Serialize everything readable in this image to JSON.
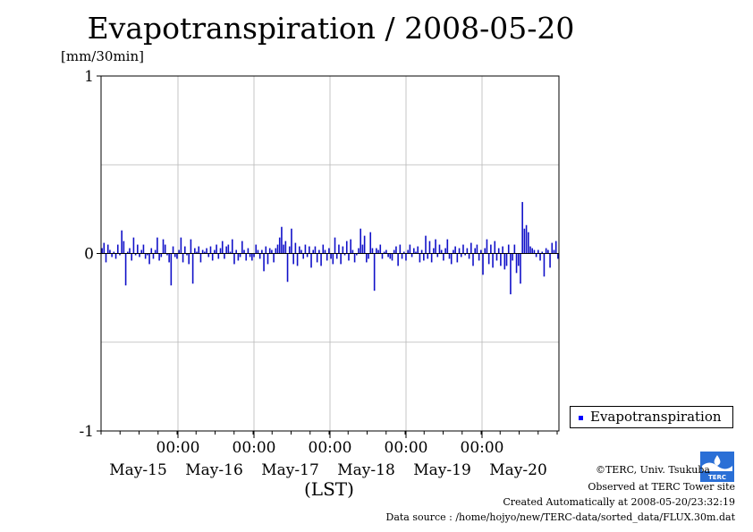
{
  "chart_data": {
    "type": "bar",
    "title": "Evapotranspiration / 2008-05-20",
    "ylabel": "[mm/30min]",
    "xlabel": "(LST)",
    "ylim": [
      -1,
      1
    ],
    "yticks": [
      "1",
      "0",
      "-1"
    ],
    "time_ticks": [
      "00:00",
      "00:00",
      "00:00",
      "00:00",
      "00:00"
    ],
    "date_ticks": [
      "May-15",
      "May-16",
      "May-17",
      "May-18",
      "May-19",
      "May-20"
    ],
    "legend": "top-right",
    "grid": true,
    "series": [
      {
        "name": "Evapotranspiration",
        "color": "#1010c8",
        "values": [
          0.03,
          0.06,
          -0.05,
          0.05,
          0.02,
          -0.02,
          0.01,
          -0.03,
          0.05,
          -0.01,
          0.13,
          0.07,
          -0.18,
          0.01,
          0.03,
          -0.04,
          0.09,
          -0.01,
          0.05,
          -0.02,
          0.02,
          0.05,
          -0.03,
          -0.01,
          -0.06,
          0.03,
          -0.03,
          0.02,
          0.09,
          -0.04,
          -0.02,
          0.08,
          0.05,
          -0.01,
          -0.05,
          -0.18,
          0.04,
          -0.02,
          -0.03,
          0.02,
          0.09,
          -0.05,
          0.04,
          -0.01,
          -0.06,
          0.08,
          -0.17,
          0.03,
          0.01,
          0.04,
          -0.05,
          0.02,
          0.01,
          0.03,
          -0.02,
          0.04,
          -0.04,
          0.02,
          0.05,
          -0.03,
          0.03,
          0.07,
          -0.03,
          0.04,
          0.05,
          0.01,
          0.08,
          -0.06,
          0.02,
          -0.04,
          -0.02,
          0.07,
          0.02,
          -0.04,
          0.03,
          -0.02,
          -0.04,
          -0.02,
          0.05,
          0.02,
          -0.03,
          0.02,
          -0.1,
          0.04,
          -0.06,
          0.03,
          0.02,
          -0.05,
          0.03,
          0.05,
          0.09,
          0.15,
          0.05,
          0.07,
          -0.16,
          0.04,
          0.14,
          -0.06,
          0.06,
          -0.07,
          0.04,
          0.02,
          -0.03,
          0.05,
          -0.02,
          0.04,
          -0.08,
          0.02,
          0.04,
          -0.05,
          0.02,
          -0.07,
          0.05,
          0.02,
          -0.04,
          0.03,
          -0.03,
          -0.06,
          0.09,
          -0.03,
          0.05,
          -0.06,
          0.04,
          -0.01,
          0.07,
          -0.04,
          0.08,
          0.02,
          -0.05,
          -0.01,
          0.03,
          0.14,
          0.05,
          0.1,
          -0.05,
          -0.03,
          0.12,
          0.03,
          -0.21,
          0.03,
          0.02,
          0.05,
          -0.03,
          0.01,
          0.02,
          -0.02,
          -0.03,
          -0.04,
          0.02,
          0.04,
          -0.07,
          0.05,
          -0.03,
          0.01,
          -0.04,
          0.02,
          0.05,
          -0.02,
          0.03,
          0.01,
          0.04,
          -0.05,
          0.02,
          -0.04,
          0.1,
          -0.03,
          0.07,
          -0.05,
          0.03,
          0.08,
          -0.02,
          0.05,
          0.02,
          -0.04,
          0.03,
          0.08,
          -0.03,
          -0.06,
          0.02,
          0.04,
          -0.05,
          0.03,
          -0.02,
          0.05,
          -0.01,
          0.03,
          -0.03,
          0.06,
          -0.07,
          0.03,
          0.05,
          -0.04,
          0.02,
          -0.12,
          0.03,
          0.08,
          -0.06,
          0.05,
          -0.08,
          0.07,
          -0.04,
          0.03,
          -0.07,
          0.04,
          -0.09,
          -0.07,
          0.05,
          -0.23,
          -0.04,
          0.05,
          -0.11,
          -0.07,
          -0.17,
          0.29,
          0.14,
          0.16,
          0.12,
          0.04,
          0.03,
          0.02,
          -0.02,
          0.02,
          -0.04,
          0.01,
          -0.13,
          0.03,
          0.02,
          -0.08,
          0.06,
          0.02,
          0.07,
          -0.03
        ]
      }
    ]
  },
  "footer": {
    "copyright": "©TERC, Univ. Tsukuba",
    "observed": "Observed at TERC Tower site",
    "created": "Created Automatically at 2008-05-20/23:32:19",
    "source": "Data source : /home/hojyo/new/TERC-data/sorted_data/FLUX.30m.dat"
  },
  "logo_text": "TERC"
}
